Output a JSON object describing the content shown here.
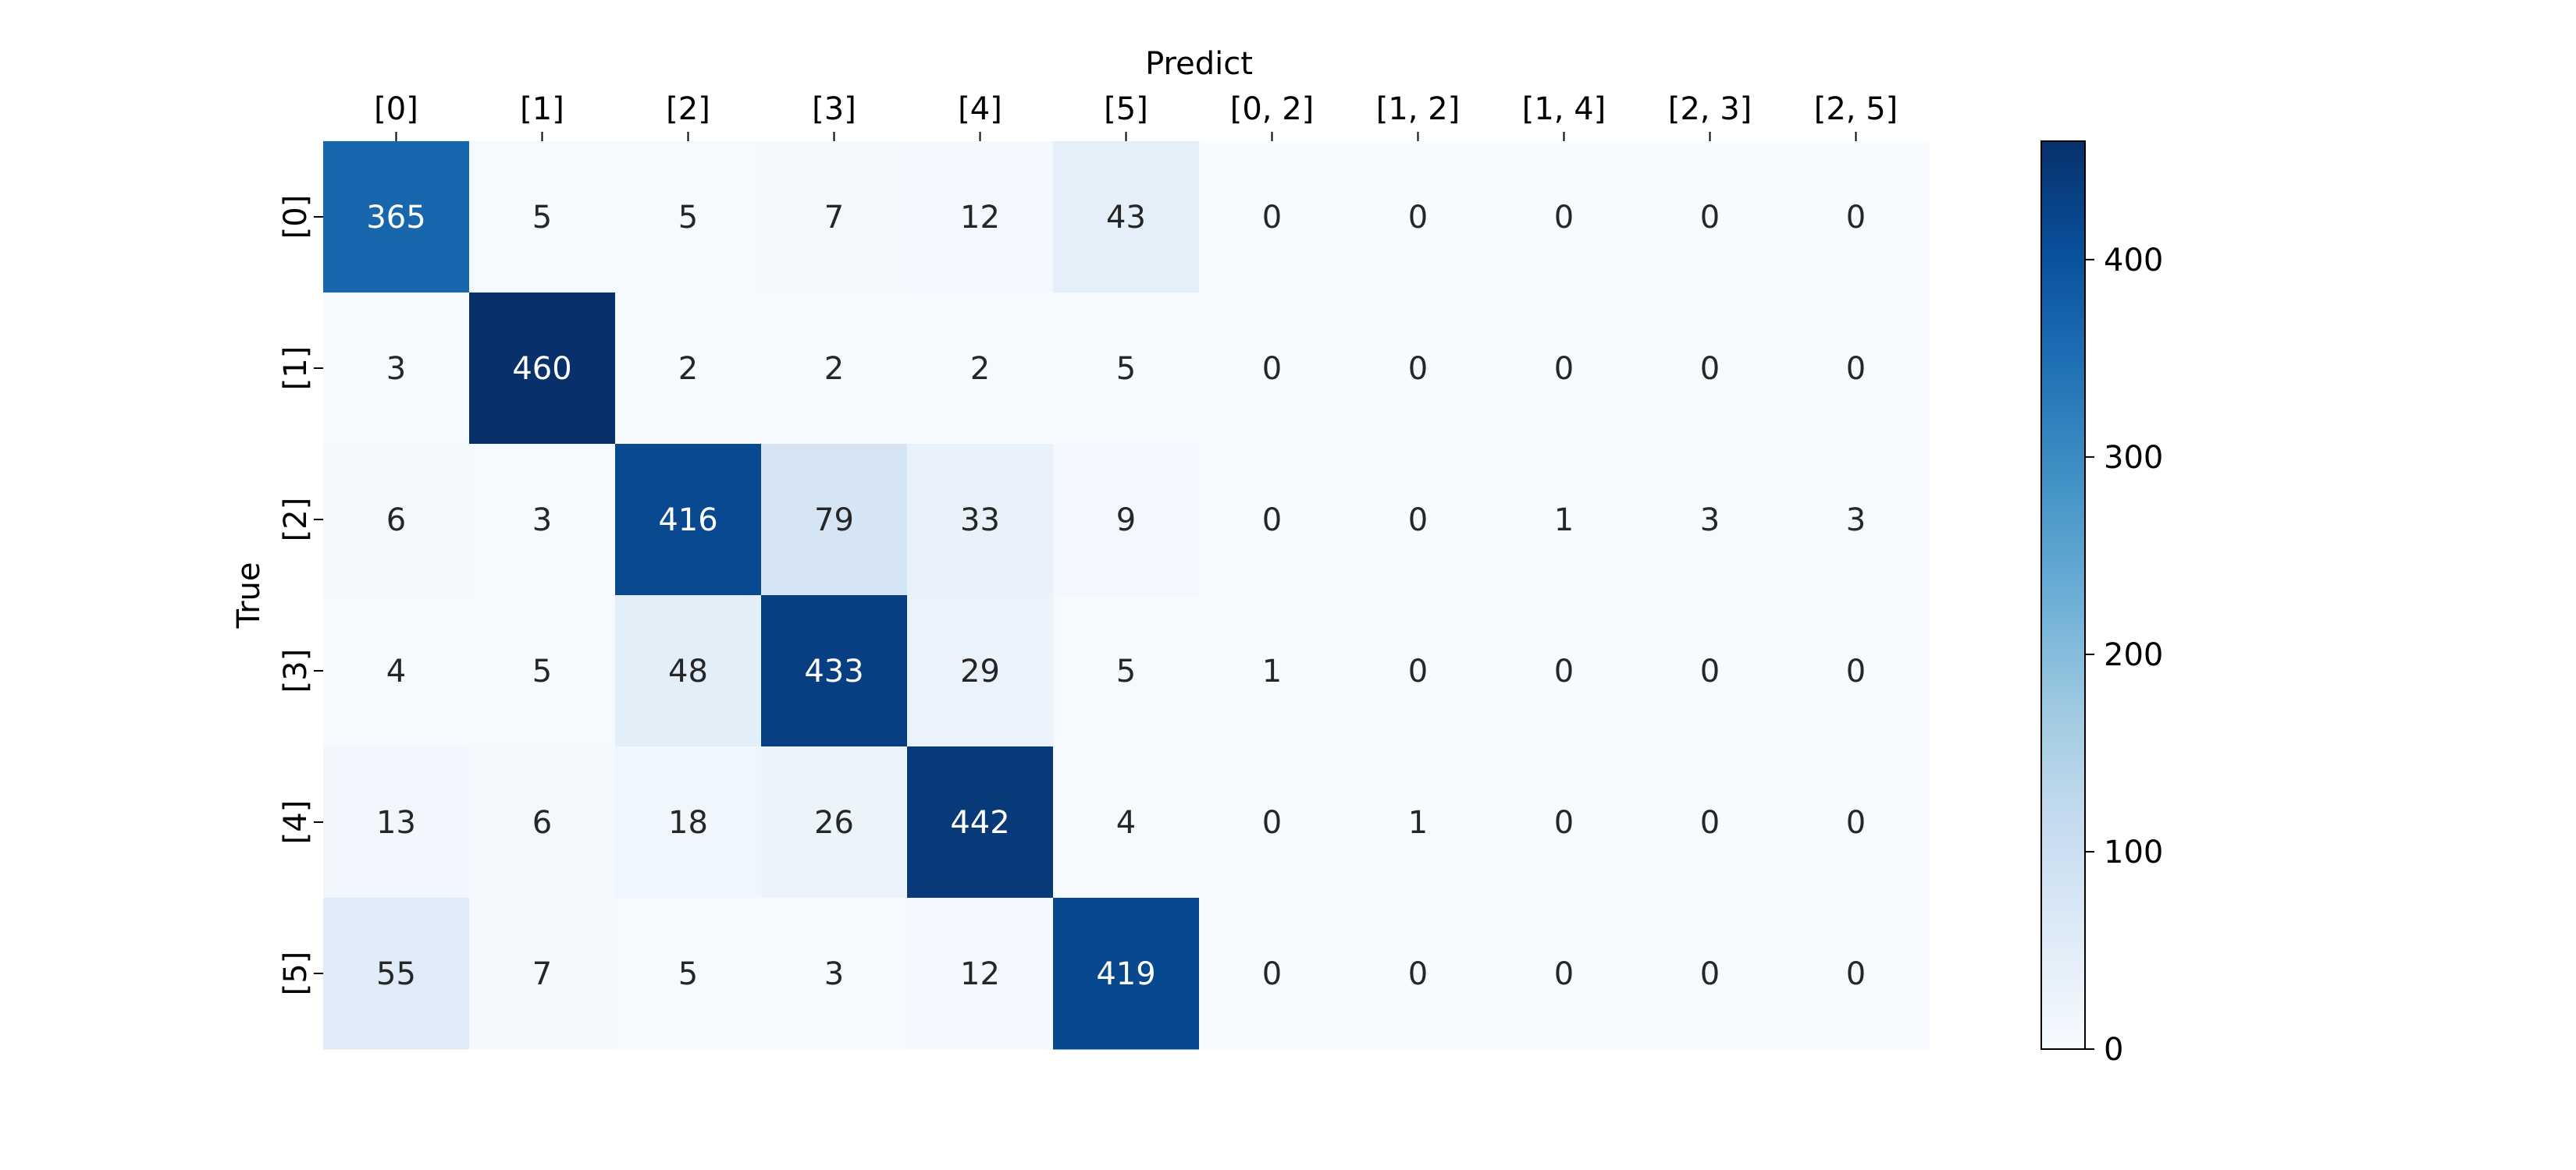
{
  "chart_data": {
    "type": "heatmap",
    "title": "",
    "xlabel": "Predict",
    "ylabel": "True",
    "x_categories": [
      "[0]",
      "[1]",
      "[2]",
      "[3]",
      "[4]",
      "[5]",
      "[0, 2]",
      "[1, 2]",
      "[1, 4]",
      "[2, 3]",
      "[2, 5]"
    ],
    "y_categories": [
      "[0]",
      "[1]",
      "[2]",
      "[3]",
      "[4]",
      "[5]"
    ],
    "values": [
      [
        365,
        5,
        5,
        7,
        12,
        43,
        0,
        0,
        0,
        0,
        0
      ],
      [
        3,
        460,
        2,
        2,
        2,
        5,
        0,
        0,
        0,
        0,
        0
      ],
      [
        6,
        3,
        416,
        79,
        33,
        9,
        0,
        0,
        1,
        3,
        3
      ],
      [
        4,
        5,
        48,
        433,
        29,
        5,
        1,
        0,
        0,
        0,
        0
      ],
      [
        13,
        6,
        18,
        26,
        442,
        4,
        0,
        1,
        0,
        0,
        0
      ],
      [
        55,
        7,
        5,
        3,
        12,
        419,
        0,
        0,
        0,
        0,
        0
      ]
    ],
    "x_axis_position": "top",
    "colormap": "Blues",
    "colorbar": {
      "range": [
        0,
        460
      ],
      "ticks": [
        0,
        100,
        200,
        300,
        400
      ],
      "tick_labels": [
        "0",
        "100",
        "200",
        "300",
        "400"
      ]
    },
    "grid": false,
    "colors": {
      "low": "#f7fbff",
      "high": "#08306b",
      "text_dark": "#262626",
      "text_light": "#ffffff"
    }
  }
}
